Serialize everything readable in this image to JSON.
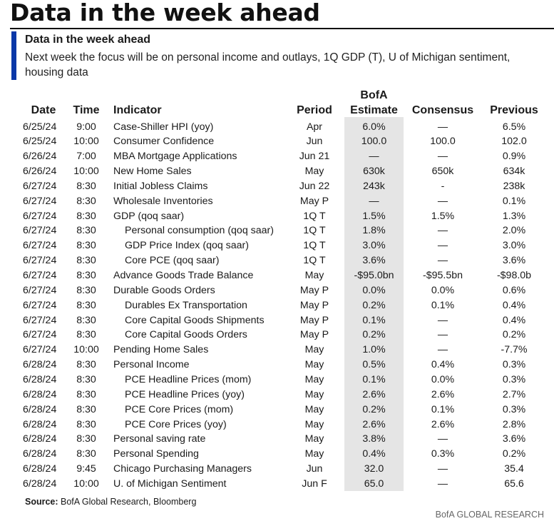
{
  "page_title": "Data in the week ahead",
  "section_title": "Data in the week ahead",
  "description": "Next week the focus will be on personal income and outlays, 1Q GDP (T), U of Michigan sentiment, housing data",
  "columns": {
    "date": "Date",
    "time": "Time",
    "indicator": "Indicator",
    "period": "Period",
    "estimate_line1": "BofA",
    "estimate_line2": "Estimate",
    "consensus": "Consensus",
    "previous": "Previous"
  },
  "rows": [
    {
      "date": "6/25/24",
      "time": "9:00",
      "indicator": "Case-Shiller HPI (yoy)",
      "indent": false,
      "period": "Apr",
      "estimate": "6.0%",
      "consensus": "—",
      "previous": "6.5%"
    },
    {
      "date": "6/25/24",
      "time": "10:00",
      "indicator": "Consumer Confidence",
      "indent": false,
      "period": "Jun",
      "estimate": "100.0",
      "consensus": "100.0",
      "previous": "102.0"
    },
    {
      "date": "6/26/24",
      "time": "7:00",
      "indicator": "MBA Mortgage Applications",
      "indent": false,
      "period": "Jun 21",
      "estimate": "—",
      "consensus": "—",
      "previous": "0.9%"
    },
    {
      "date": "6/26/24",
      "time": "10:00",
      "indicator": "New Home Sales",
      "indent": false,
      "period": "May",
      "estimate": "630k",
      "consensus": "650k",
      "previous": "634k"
    },
    {
      "date": "6/27/24",
      "time": "8:30",
      "indicator": "Initial Jobless Claims",
      "indent": false,
      "period": "Jun 22",
      "estimate": "243k",
      "consensus": "-",
      "previous": "238k"
    },
    {
      "date": "6/27/24",
      "time": "8:30",
      "indicator": "Wholesale Inventories",
      "indent": false,
      "period": "May P",
      "estimate": "—",
      "consensus": "—",
      "previous": "0.1%"
    },
    {
      "date": "6/27/24",
      "time": "8:30",
      "indicator": "GDP (qoq saar)",
      "indent": false,
      "period": "1Q T",
      "estimate": "1.5%",
      "consensus": "1.5%",
      "previous": "1.3%"
    },
    {
      "date": "6/27/24",
      "time": "8:30",
      "indicator": "Personal consumption (qoq saar)",
      "indent": true,
      "period": "1Q T",
      "estimate": "1.8%",
      "consensus": "—",
      "previous": "2.0%"
    },
    {
      "date": "6/27/24",
      "time": "8:30",
      "indicator": "GDP Price Index (qoq saar)",
      "indent": true,
      "period": "1Q T",
      "estimate": "3.0%",
      "consensus": "—",
      "previous": "3.0%"
    },
    {
      "date": "6/27/24",
      "time": "8:30",
      "indicator": "Core PCE (qoq saar)",
      "indent": true,
      "period": "1Q T",
      "estimate": "3.6%",
      "consensus": "—",
      "previous": "3.6%"
    },
    {
      "date": "6/27/24",
      "time": "8:30",
      "indicator": "Advance Goods Trade Balance",
      "indent": false,
      "period": "May",
      "estimate": "-$95.0bn",
      "consensus": "-$95.5bn",
      "previous": "-$98.0b"
    },
    {
      "date": "6/27/24",
      "time": "8:30",
      "indicator": "Durable Goods Orders",
      "indent": false,
      "period": "May P",
      "estimate": "0.0%",
      "consensus": "0.0%",
      "previous": "0.6%"
    },
    {
      "date": "6/27/24",
      "time": "8:30",
      "indicator": "Durables Ex Transportation",
      "indent": true,
      "period": "May P",
      "estimate": "0.2%",
      "consensus": "0.1%",
      "previous": "0.4%"
    },
    {
      "date": "6/27/24",
      "time": "8:30",
      "indicator": "Core Capital Goods Shipments",
      "indent": true,
      "period": "May P",
      "estimate": "0.1%",
      "consensus": "—",
      "previous": "0.4%"
    },
    {
      "date": "6/27/24",
      "time": "8:30",
      "indicator": "Core Capital Goods Orders",
      "indent": true,
      "period": "May P",
      "estimate": "0.2%",
      "consensus": "—",
      "previous": "0.2%"
    },
    {
      "date": "6/27/24",
      "time": "10:00",
      "indicator": "Pending Home Sales",
      "indent": false,
      "period": "May",
      "estimate": "1.0%",
      "consensus": "—",
      "previous": "-7.7%"
    },
    {
      "date": "6/28/24",
      "time": "8:30",
      "indicator": "Personal Income",
      "indent": false,
      "period": "May",
      "estimate": "0.5%",
      "consensus": "0.4%",
      "previous": "0.3%"
    },
    {
      "date": "6/28/24",
      "time": "8:30",
      "indicator": "PCE Headline Prices (mom)",
      "indent": true,
      "period": "May",
      "estimate": "0.1%",
      "consensus": "0.0%",
      "previous": "0.3%"
    },
    {
      "date": "6/28/24",
      "time": "8:30",
      "indicator": "PCE Headline Prices (yoy)",
      "indent": true,
      "period": "May",
      "estimate": "2.6%",
      "consensus": "2.6%",
      "previous": "2.7%"
    },
    {
      "date": "6/28/24",
      "time": "8:30",
      "indicator": "PCE Core Prices (mom)",
      "indent": true,
      "period": "May",
      "estimate": "0.2%",
      "consensus": "0.1%",
      "previous": "0.3%"
    },
    {
      "date": "6/28/24",
      "time": "8:30",
      "indicator": "PCE Core Prices (yoy)",
      "indent": true,
      "period": "May",
      "estimate": "2.6%",
      "consensus": "2.6%",
      "previous": "2.8%"
    },
    {
      "date": "6/28/24",
      "time": "8:30",
      "indicator": "Personal saving rate",
      "indent": false,
      "period": "May",
      "estimate": "3.8%",
      "consensus": "—",
      "previous": "3.6%"
    },
    {
      "date": "6/28/24",
      "time": "8:30",
      "indicator": "Personal Spending",
      "indent": false,
      "period": "May",
      "estimate": "0.4%",
      "consensus": "0.3%",
      "previous": "0.2%"
    },
    {
      "date": "6/28/24",
      "time": "9:45",
      "indicator": "Chicago Purchasing Managers",
      "indent": false,
      "period": "Jun",
      "estimate": "32.0",
      "consensus": "—",
      "previous": "35.4"
    },
    {
      "date": "6/28/24",
      "time": "10:00",
      "indicator": "U. of Michigan Sentiment",
      "indent": false,
      "period": "Jun F",
      "estimate": "65.0",
      "consensus": "—",
      "previous": "65.6"
    }
  ],
  "source_label": "Source:",
  "source_text": " BofA Global Research, Bloomberg",
  "branding": "BofA GLOBAL RESEARCH",
  "colors": {
    "accent": "#0a38a8",
    "estimate_shade": "#e5e5e5"
  }
}
